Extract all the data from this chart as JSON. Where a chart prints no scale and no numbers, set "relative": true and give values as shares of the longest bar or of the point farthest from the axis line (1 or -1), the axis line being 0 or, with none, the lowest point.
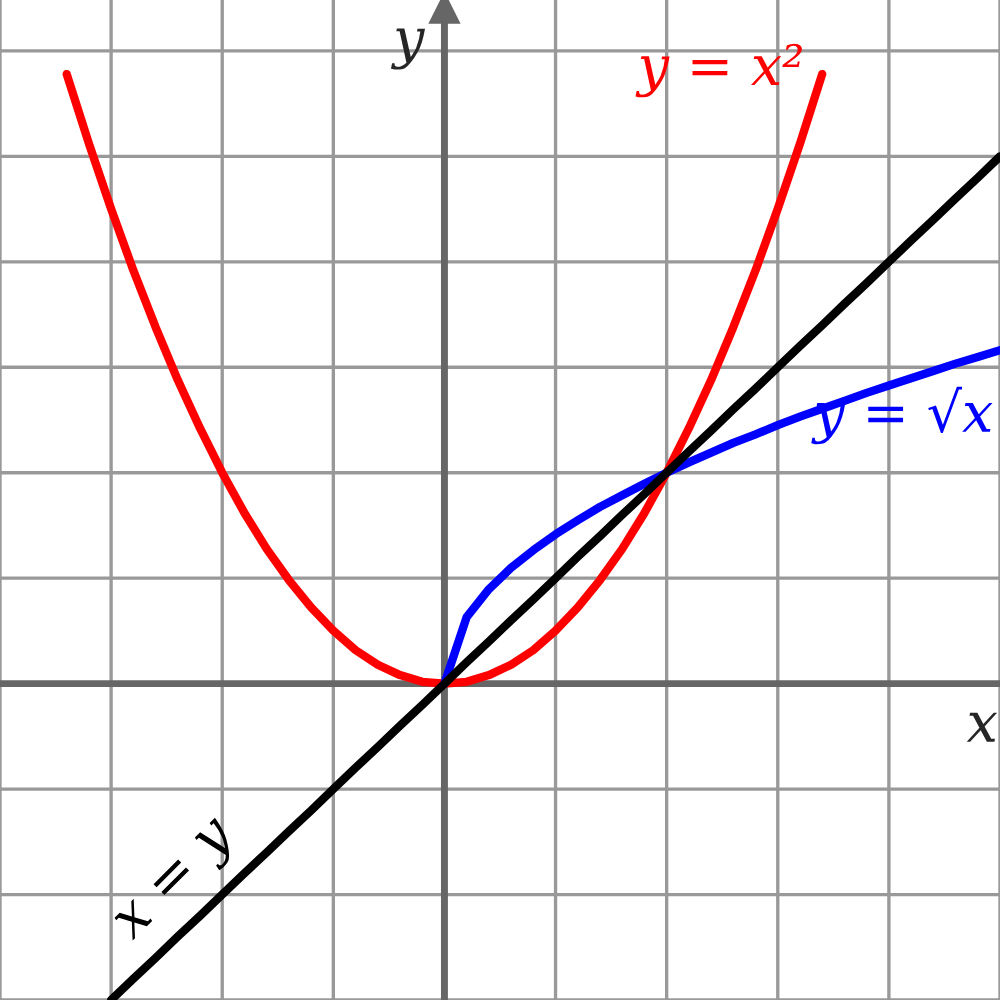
{
  "chart_data": {
    "type": "line",
    "relative": true,
    "xlabel": "x",
    "ylabel": "y",
    "grid": true,
    "legend": false,
    "categories": [
      null,
      null,
      null,
      null,
      null,
      null,
      null,
      null,
      null,
      null,
      null,
      null,
      null,
      null,
      null,
      null,
      null,
      null,
      null,
      null,
      null,
      null,
      null,
      null,
      null,
      null,
      null,
      null,
      null,
      null,
      null,
      null,
      null,
      null,
      null,
      null,
      null,
      null,
      null,
      null,
      null,
      null,
      null,
      null,
      null,
      null
    ],
    "series": [
      {
        "name": "y = x²",
        "color": "#ff0000",
        "values": [
          null,
          null,
          null,
          1.0,
          0.886,
          0.779,
          0.678,
          0.585,
          0.498,
          0.419,
          0.346,
          0.28,
          0.221,
          0.17,
          0.125,
          0.087,
          0.055,
          0.031,
          0.014,
          0.003,
          0,
          0.003,
          0.014,
          0.031,
          0.055,
          0.087,
          0.125,
          0.17,
          0.221,
          0.28,
          0.346,
          0.419,
          0.498,
          0.585,
          0.678,
          0.779,
          0.886,
          1.0,
          null,
          null,
          null,
          null,
          null,
          null,
          null,
          null
        ]
      },
      {
        "name": "y = √x",
        "color": "#0000ff",
        "values": [
          null,
          null,
          null,
          null,
          null,
          null,
          null,
          null,
          null,
          null,
          null,
          null,
          null,
          null,
          null,
          null,
          null,
          null,
          null,
          null,
          0,
          0.109,
          0.155,
          0.19,
          0.219,
          0.245,
          0.268,
          0.29,
          0.309,
          0.328,
          0.346,
          0.363,
          0.379,
          0.395,
          0.409,
          0.424,
          0.438,
          0.451,
          0.464,
          0.477,
          0.489,
          0.501,
          0.513,
          0.525,
          0.536,
          0.547
        ]
      },
      {
        "name": "x = y",
        "color": "#000000",
        "values": [
          null,
          null,
          null,
          null,
          null,
          -0.519,
          -0.484,
          -0.45,
          -0.415,
          -0.381,
          -0.346,
          -0.311,
          -0.277,
          -0.242,
          -0.208,
          -0.173,
          -0.138,
          -0.104,
          -0.069,
          -0.035,
          0,
          0.035,
          0.069,
          0.104,
          0.138,
          0.173,
          0.208,
          0.242,
          0.277,
          0.311,
          0.346,
          0.381,
          0.415,
          0.45,
          0.484,
          0.519,
          0.554,
          0.588,
          0.623,
          0.657,
          0.692,
          0.727,
          0.761,
          0.796,
          0.83,
          0.865
        ]
      }
    ]
  }
}
